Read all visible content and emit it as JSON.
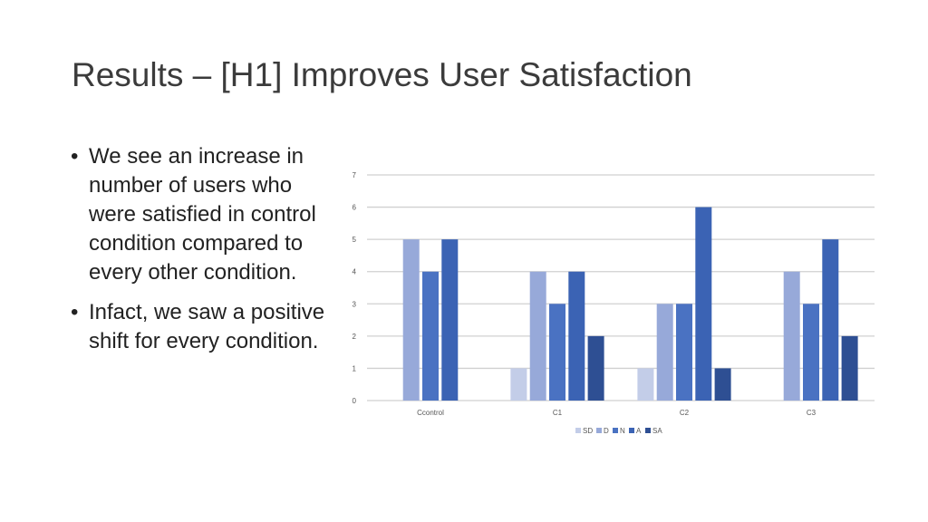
{
  "slide": {
    "title": "Results – [H1] Improves User Satisfaction",
    "bullets": [
      "We see an increase in number of users who were satisfied in control condition compared to every other condition.",
      "Infact, we saw a positive shift for every condition."
    ]
  },
  "chart_data": {
    "type": "bar",
    "title": "",
    "xlabel": "",
    "ylabel": "",
    "ylim": [
      0,
      7
    ],
    "yticks": [
      0,
      1,
      2,
      3,
      4,
      5,
      6,
      7
    ],
    "grid": true,
    "legend_position": "bottom",
    "categories": [
      "Ccontrol",
      "C1",
      "C2",
      "C3"
    ],
    "series": [
      {
        "name": "SD",
        "color": "#c3cde8",
        "values": [
          0,
          1,
          1,
          0
        ]
      },
      {
        "name": "D",
        "color": "#97a9d9",
        "values": [
          5,
          4,
          3,
          4
        ]
      },
      {
        "name": "N",
        "color": "#4a72c2",
        "values": [
          4,
          3,
          3,
          3
        ]
      },
      {
        "name": "A",
        "color": "#3b63b4",
        "values": [
          5,
          4,
          6,
          5
        ]
      },
      {
        "name": "SA",
        "color": "#2e4f93",
        "values": [
          0,
          2,
          1,
          2
        ]
      }
    ]
  }
}
